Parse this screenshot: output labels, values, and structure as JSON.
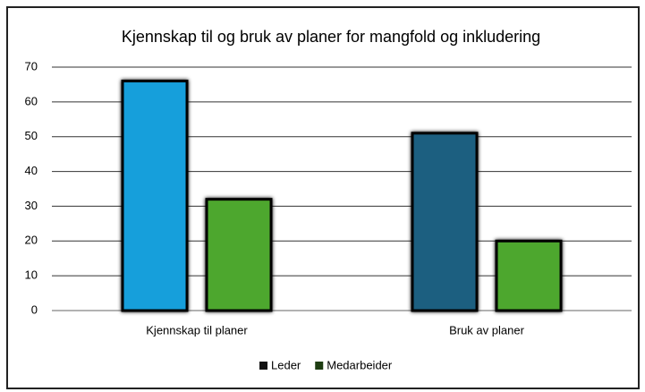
{
  "chart_data": {
    "type": "bar",
    "title": "Kjennskap til og bruk av planer for mangfold og inkludering",
    "categories": [
      "Kjennskap til planer",
      "Bruk av planer"
    ],
    "series": [
      {
        "name": "Leder",
        "color": "#111111",
        "colors": [
          "#169fdb",
          "#1a5e80"
        ],
        "values": [
          66,
          51
        ]
      },
      {
        "name": "Medarbeider",
        "color": "#1e3d12",
        "colors": [
          "#4ea72e",
          "#4ea72e"
        ],
        "values": [
          32,
          20
        ]
      }
    ],
    "ylim": [
      0,
      70
    ],
    "yticks": [
      0,
      10,
      20,
      30,
      40,
      50,
      60,
      70
    ],
    "grid": true,
    "legend": "bottom"
  }
}
